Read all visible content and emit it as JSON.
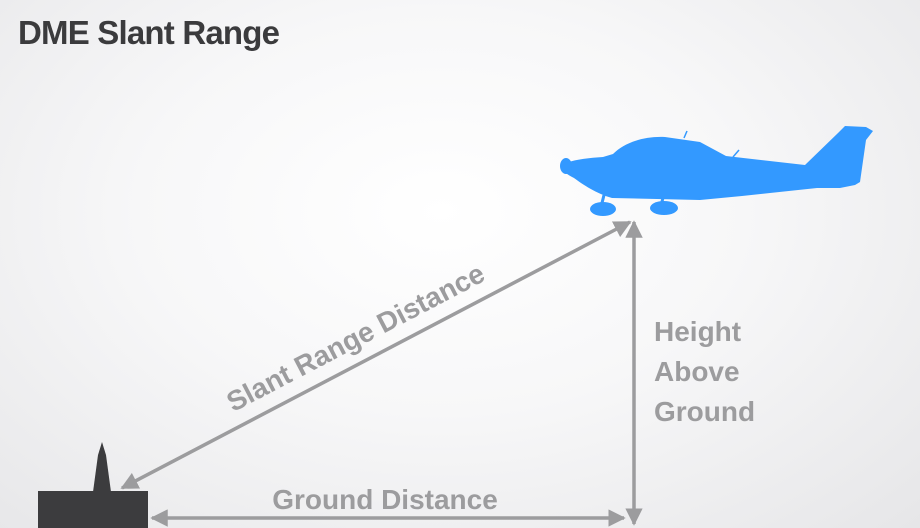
{
  "title": "DME Slant Range",
  "labels": {
    "slant_range": "Slant Range Distance",
    "ground_distance": "Ground Distance",
    "height_line1": "Height",
    "height_line2": "Above",
    "height_line3": "Ground"
  },
  "colors": {
    "aircraft": "#3399ff",
    "station": "#3c3c3e",
    "arrow": "#9c9c9e",
    "title": "#3b3b3d"
  },
  "icons": {
    "aircraft": "airplane-icon",
    "station": "dme-ground-station-icon"
  }
}
